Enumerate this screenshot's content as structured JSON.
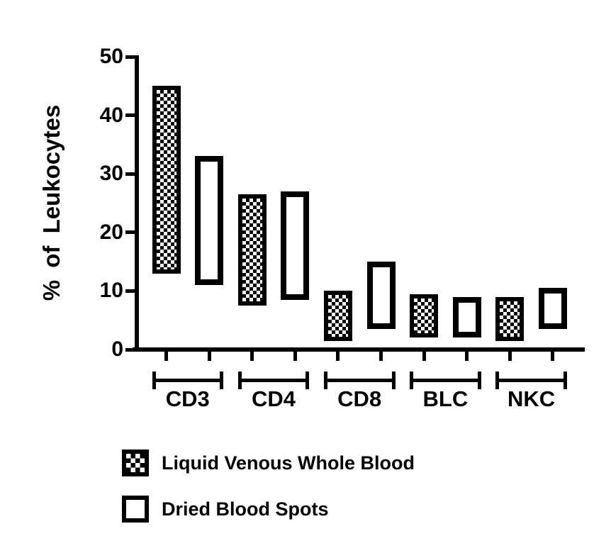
{
  "chart_data": {
    "type": "bar",
    "subtype": "floating_range_bars",
    "title": "",
    "ylabel": "% of Leukocytes",
    "xlabel": "",
    "ylim": [
      0,
      50
    ],
    "yticks": [
      0,
      10,
      20,
      30,
      40,
      50
    ],
    "categories": [
      "CD3",
      "CD4",
      "CD8",
      "BLC",
      "NKC"
    ],
    "series": [
      {
        "name": "Liquid Venous Whole Blood",
        "style": "checkered",
        "ranges": [
          [
            13,
            45
          ],
          [
            7.5,
            26.5
          ],
          [
            1.5,
            10
          ],
          [
            2,
            9.5
          ],
          [
            1.5,
            9
          ]
        ]
      },
      {
        "name": "Dried Blood Spots",
        "style": "open",
        "ranges": [
          [
            11,
            33
          ],
          [
            8.5,
            27
          ],
          [
            3.5,
            15
          ],
          [
            2,
            9
          ],
          [
            3.5,
            10.5
          ]
        ]
      }
    ],
    "grid": false,
    "legend_position": "bottom-left",
    "colors": {
      "ink": "#000000",
      "background": "#ffffff"
    }
  }
}
